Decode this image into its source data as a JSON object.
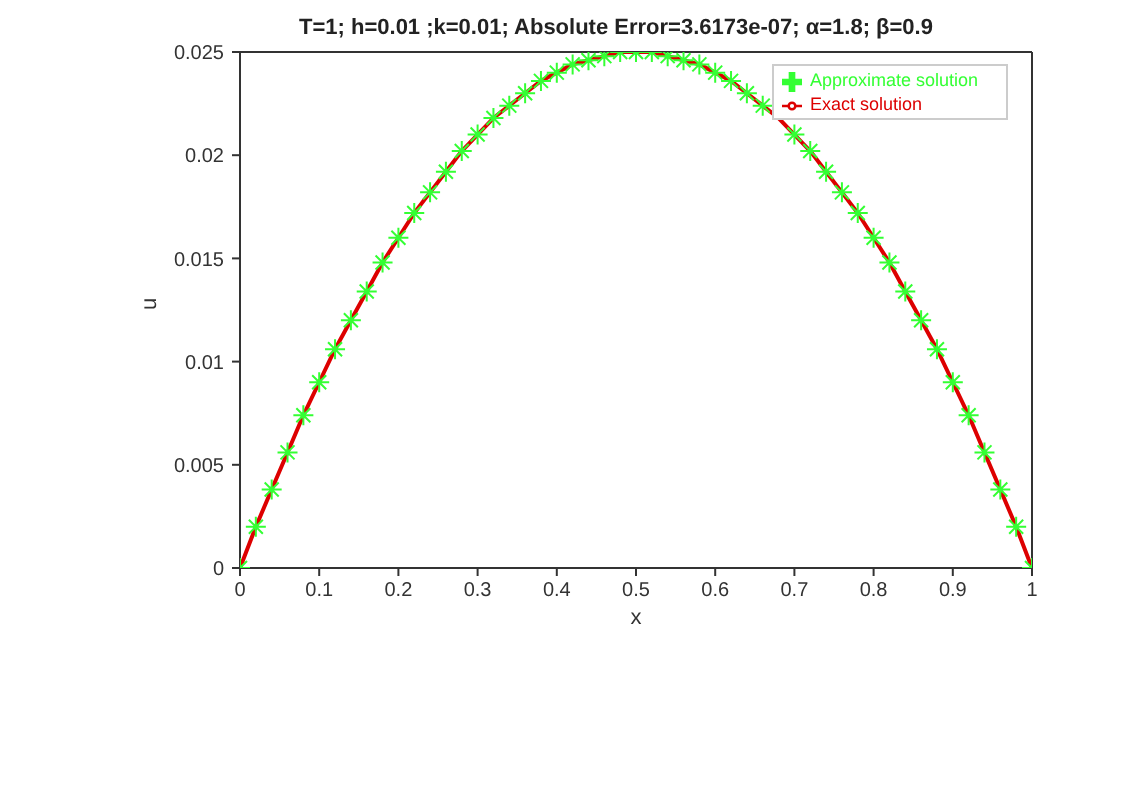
{
  "chart_data": {
    "type": "line",
    "title": "T=1; h=0.01 ;k=0.01; Absolute Error=3.6173e-07; α=1.8; β=0.9",
    "xlabel": "x",
    "ylabel": "u",
    "x": [
      0,
      0.02,
      0.04,
      0.06,
      0.08,
      0.1,
      0.12,
      0.14,
      0.16,
      0.18,
      0.2,
      0.22,
      0.24,
      0.26,
      0.28,
      0.3,
      0.32,
      0.34,
      0.36,
      0.38,
      0.4,
      0.42,
      0.44,
      0.46,
      0.48,
      0.5,
      0.52,
      0.54,
      0.56,
      0.58,
      0.6,
      0.62,
      0.64,
      0.66,
      0.68,
      0.7,
      0.72,
      0.74,
      0.76,
      0.78,
      0.8,
      0.82,
      0.84,
      0.86,
      0.88,
      0.9,
      0.92,
      0.94,
      0.96,
      0.98,
      1
    ],
    "series": [
      {
        "name": "Approximate solution",
        "type": "scatter",
        "marker": "cross",
        "color": "#33ff33",
        "values": [
          0,
          0.002,
          0.0038,
          0.0056,
          0.0074,
          0.009,
          0.0106,
          0.012,
          0.0134,
          0.0148,
          0.016,
          0.0172,
          0.0182,
          0.0192,
          0.0202,
          0.021,
          0.0218,
          0.0224,
          0.023,
          0.0236,
          0.024,
          0.0244,
          0.0246,
          0.0248,
          0.025,
          0.025,
          0.025,
          0.0248,
          0.0246,
          0.0244,
          0.024,
          0.0236,
          0.023,
          0.0224,
          null,
          0.021,
          0.0202,
          0.0192,
          0.0182,
          0.0172,
          0.016,
          0.0148,
          0.0134,
          0.012,
          0.0106,
          0.009,
          0.0074,
          0.0056,
          0.0038,
          0.002,
          0
        ]
      },
      {
        "name": "Exact solution",
        "type": "line",
        "marker": "none",
        "color": "#dd0000",
        "values": [
          0,
          0.002,
          0.0038,
          0.0056,
          0.0074,
          0.009,
          0.0106,
          0.012,
          0.0134,
          0.0148,
          0.016,
          0.0172,
          0.0182,
          0.0192,
          0.0202,
          0.021,
          0.0218,
          0.0224,
          0.023,
          0.0236,
          0.024,
          0.0244,
          0.0246,
          0.0248,
          0.025,
          0.025,
          0.025,
          0.0248,
          0.0246,
          0.0244,
          0.024,
          0.0236,
          0.023,
          0.0224,
          0.0218,
          0.021,
          0.0202,
          0.0192,
          0.0182,
          0.0172,
          0.016,
          0.0148,
          0.0134,
          0.012,
          0.0106,
          0.009,
          0.0074,
          0.0056,
          0.0038,
          0.002,
          0
        ]
      }
    ],
    "xlim": [
      0,
      1
    ],
    "xticks": [
      0,
      0.1,
      0.2,
      0.3,
      0.4,
      0.5,
      0.6,
      0.7,
      0.8,
      0.9,
      1
    ],
    "ylim": [
      0,
      0.025
    ],
    "yticks": [
      0,
      0.005,
      0.01,
      0.015,
      0.02,
      0.025
    ],
    "grid": false,
    "legend": "top right"
  }
}
